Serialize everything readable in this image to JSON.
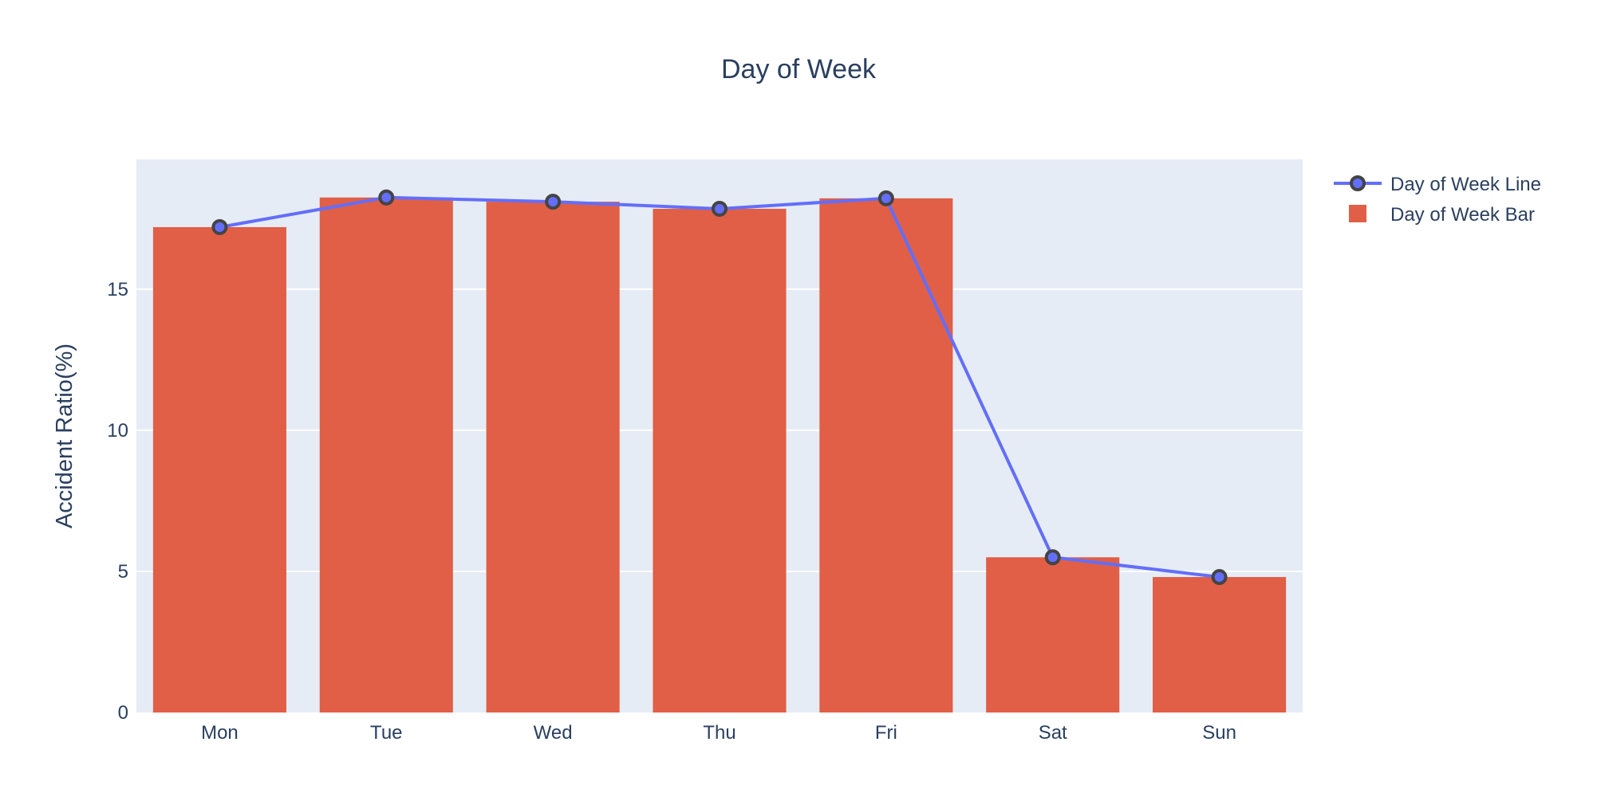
{
  "chart_data": {
    "type": "bar",
    "title": "Day of Week",
    "xlabel": "",
    "ylabel": "Accident Ratio(%)",
    "categories": [
      "Mon",
      "Tue",
      "Wed",
      "Thu",
      "Fri",
      "Sat",
      "Sun"
    ],
    "ylim": [
      0,
      19.6
    ],
    "yticks": [
      0,
      5,
      10,
      15
    ],
    "grid": true,
    "legend_position": "top-right",
    "series": [
      {
        "name": "Day of Week Line",
        "type": "line",
        "values": [
          17.2,
          18.25,
          18.1,
          17.85,
          18.22,
          5.5,
          4.8
        ],
        "color": "#636efa",
        "marker_color": "#636efa",
        "marker_edge_color": "#444444"
      },
      {
        "name": "Day of Week Bar",
        "type": "bar",
        "values": [
          17.2,
          18.25,
          18.1,
          17.85,
          18.22,
          5.5,
          4.8
        ],
        "color": "#e05f46"
      }
    ],
    "plot_background": "#e5ecf6",
    "grid_color": "#ffffff",
    "text_color": "#2a3f5f"
  }
}
